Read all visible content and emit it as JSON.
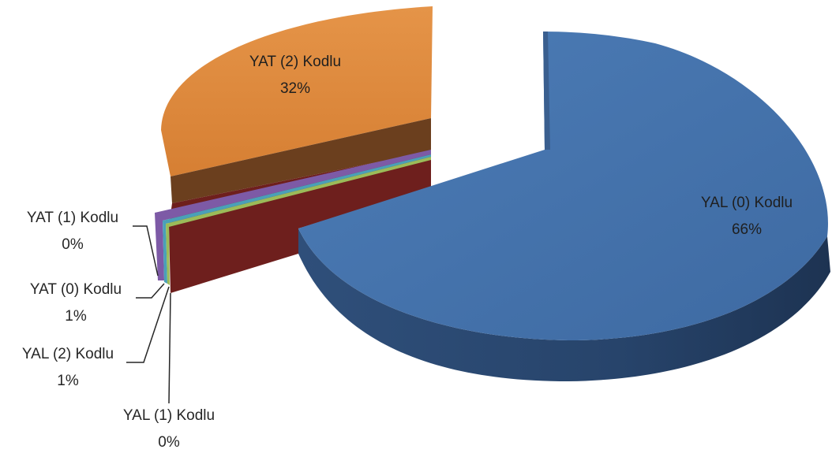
{
  "chart_data": {
    "type": "pie",
    "three_d": true,
    "exploded": true,
    "legend": "none",
    "slices": [
      {
        "name": "YAL (0) Kodlu",
        "value": 66,
        "label": "66%",
        "color": "#4472a8"
      },
      {
        "name": "YAT (2) Kodlu",
        "value": 32,
        "label": "32%",
        "color": "#e08a3c"
      },
      {
        "name": "YAT (1) Kodlu",
        "value": 0,
        "label": "0%",
        "color": "#7d5aa6"
      },
      {
        "name": "YAT (0) Kodlu",
        "value": 1,
        "label": "1%",
        "color": "#4aa0b8"
      },
      {
        "name": "YAL (2) Kodlu",
        "value": 1,
        "label": "1%",
        "color": "#9bbb59"
      },
      {
        "name": "YAL (1) Kodlu",
        "value": 0,
        "label": "0%",
        "color": "#8c2a28"
      }
    ]
  }
}
